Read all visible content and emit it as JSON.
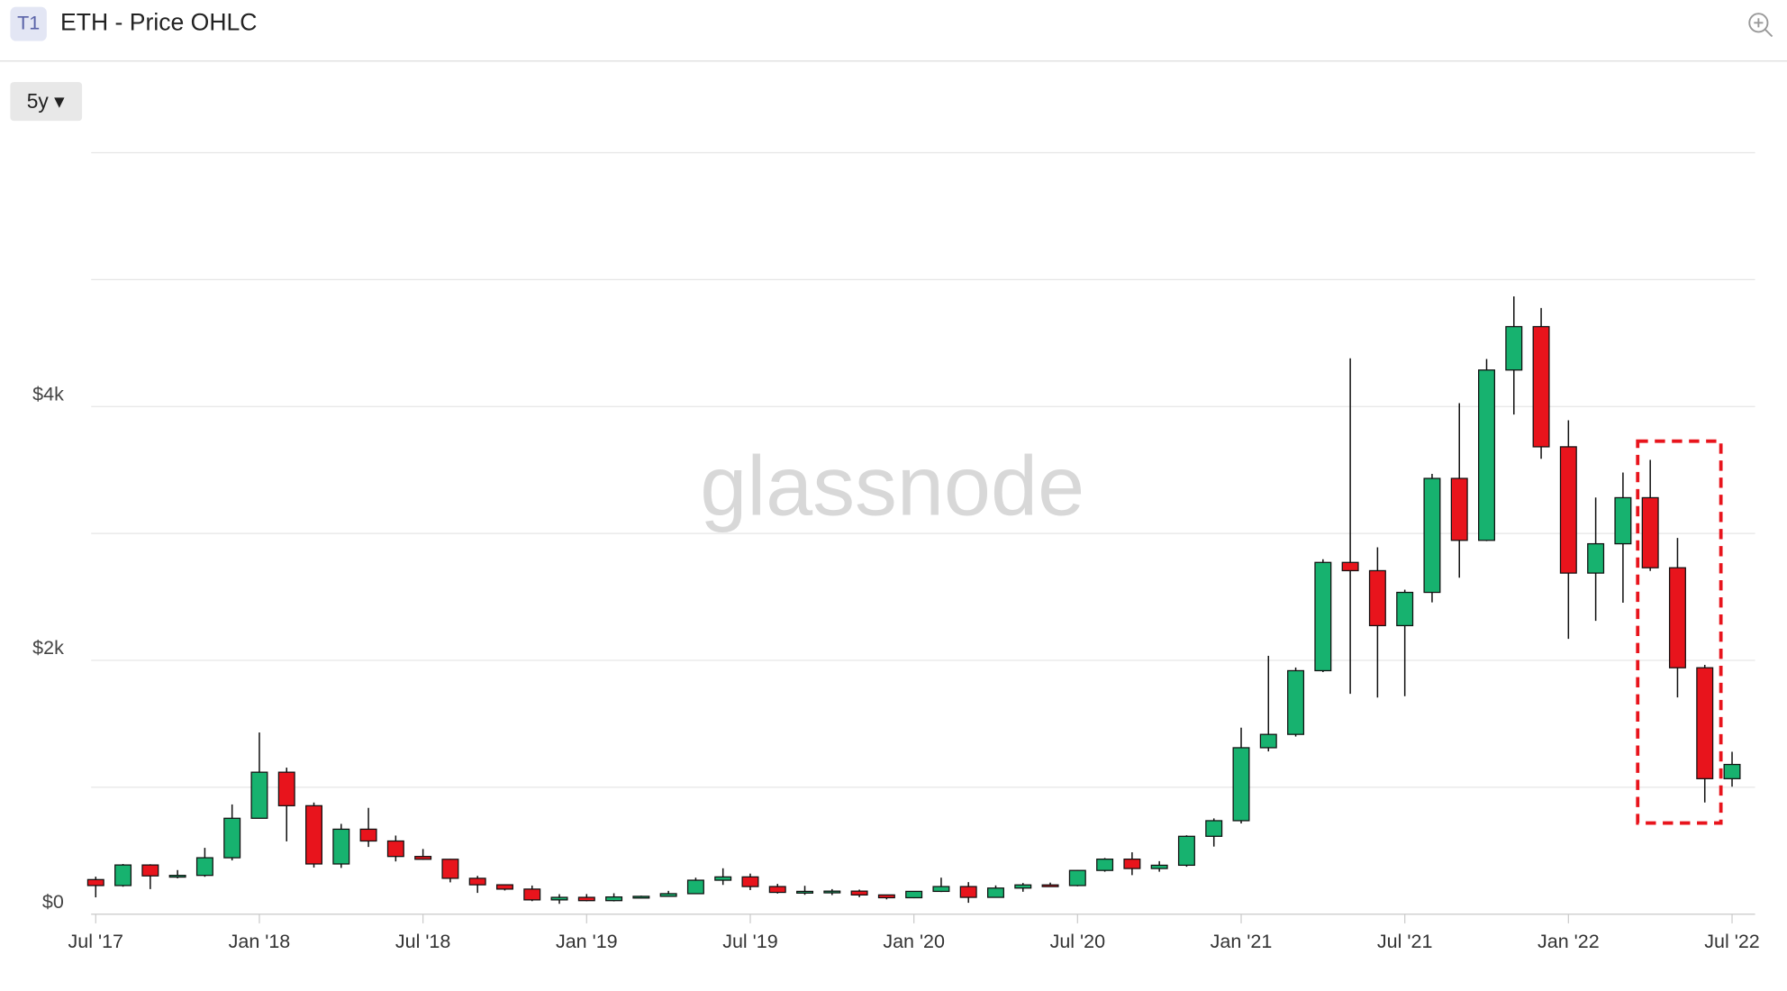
{
  "header": {
    "badge": "T1",
    "range_button": "5y ▾"
  },
  "chart_data": {
    "type": "candlestick",
    "title": "ETH - Price OHLC",
    "watermark": "glassnode",
    "categories": [
      "2017-07",
      "2017-08",
      "2017-09",
      "2017-10",
      "2017-11",
      "2017-12",
      "2018-01",
      "2018-02",
      "2018-03",
      "2018-04",
      "2018-05",
      "2018-06",
      "2018-07",
      "2018-08",
      "2018-09",
      "2018-10",
      "2018-11",
      "2018-12",
      "2019-01",
      "2019-02",
      "2019-03",
      "2019-04",
      "2019-05",
      "2019-06",
      "2019-07",
      "2019-08",
      "2019-09",
      "2019-10",
      "2019-11",
      "2019-12",
      "2020-01",
      "2020-02",
      "2020-03",
      "2020-04",
      "2020-05",
      "2020-06",
      "2020-07",
      "2020-08",
      "2020-09",
      "2020-10",
      "2020-11",
      "2020-12",
      "2021-01",
      "2021-02",
      "2021-03",
      "2021-04",
      "2021-05",
      "2021-06",
      "2021-07",
      "2021-08",
      "2021-09",
      "2021-10",
      "2021-11",
      "2021-12",
      "2022-01",
      "2022-02",
      "2022-03",
      "2022-04",
      "2022-05",
      "2022-06",
      "2022-07"
    ],
    "open": [
      273,
      226,
      388,
      302,
      306,
      445,
      756,
      1119,
      855,
      396,
      670,
      577,
      455,
      433,
      283,
      232,
      198,
      113,
      133,
      107,
      136,
      141,
      162,
      268,
      294,
      218,
      172,
      180,
      182,
      152,
      130,
      180,
      218,
      133,
      206,
      231,
      226,
      345,
      434,
      360,
      386,
      614,
      737,
      1312,
      1417,
      1919,
      2772,
      2707,
      2274,
      2536,
      3434,
      2946,
      4288,
      4630,
      3683,
      2688,
      2919,
      3282,
      2730,
      1942,
      1068
    ],
    "high": [
      296,
      396,
      394,
      348,
      523,
      865,
      1432,
      1155,
      880,
      712,
      838,
      620,
      514,
      436,
      302,
      236,
      226,
      158,
      159,
      165,
      146,
      184,
      288,
      362,
      320,
      239,
      224,
      198,
      194,
      153,
      183,
      288,
      253,
      227,
      246,
      249,
      348,
      443,
      488,
      418,
      622,
      755,
      1470,
      2036,
      1944,
      2797,
      4380,
      2891,
      2557,
      3470,
      4027,
      4375,
      4868,
      4777,
      3892,
      3283,
      3480,
      3580,
      2965,
      1965,
      1280
    ],
    "low": [
      133,
      217,
      198,
      283,
      295,
      424,
      756,
      574,
      368,
      365,
      530,
      416,
      429,
      251,
      168,
      187,
      103,
      82,
      102,
      101,
      125,
      140,
      159,
      231,
      190,
      163,
      153,
      151,
      134,
      117,
      126,
      175,
      90,
      130,
      177,
      217,
      220,
      335,
      308,
      335,
      374,
      533,
      715,
      1283,
      1400,
      1908,
      1737,
      1707,
      1718,
      2457,
      2652,
      2940,
      3937,
      3589,
      2170,
      2312,
      2455,
      2705,
      1708,
      880,
      1005
    ],
    "close": [
      226,
      388,
      302,
      306,
      445,
      756,
      1119,
      855,
      396,
      670,
      577,
      455,
      433,
      283,
      232,
      198,
      113,
      133,
      107,
      136,
      141,
      162,
      268,
      294,
      218,
      172,
      180,
      182,
      152,
      130,
      180,
      218,
      133,
      206,
      231,
      226,
      345,
      434,
      360,
      386,
      614,
      737,
      1312,
      1417,
      1919,
      2772,
      2707,
      2274,
      2536,
      3434,
      2946,
      4288,
      4630,
      3683,
      2688,
      2919,
      3282,
      2730,
      1942,
      1068,
      1180
    ],
    "up_color": "#17b26f",
    "down_color": "#e8141c",
    "ylim": [
      0,
      6000
    ],
    "yticks": [
      {
        "value": 0,
        "label": "$0"
      },
      {
        "value": 1000,
        "label": null
      },
      {
        "value": 2000,
        "label": "$2k"
      },
      {
        "value": 3000,
        "label": null
      },
      {
        "value": 4000,
        "label": "$4k"
      },
      {
        "value": 5000,
        "label": null
      },
      {
        "value": 6000,
        "label": null
      }
    ],
    "xticks": [
      {
        "value": "2017-07",
        "label": "Jul '17"
      },
      {
        "value": "2018-01",
        "label": "Jan '18"
      },
      {
        "value": "2018-07",
        "label": "Jul '18"
      },
      {
        "value": "2019-01",
        "label": "Jan '19"
      },
      {
        "value": "2019-07",
        "label": "Jul '19"
      },
      {
        "value": "2020-01",
        "label": "Jan '20"
      },
      {
        "value": "2020-07",
        "label": "Jul '20"
      },
      {
        "value": "2021-01",
        "label": "Jan '21"
      },
      {
        "value": "2021-07",
        "label": "Jul '21"
      },
      {
        "value": "2022-01",
        "label": "Jan '22"
      },
      {
        "value": "2022-07",
        "label": "Jul '22"
      }
    ],
    "grid": true
  }
}
